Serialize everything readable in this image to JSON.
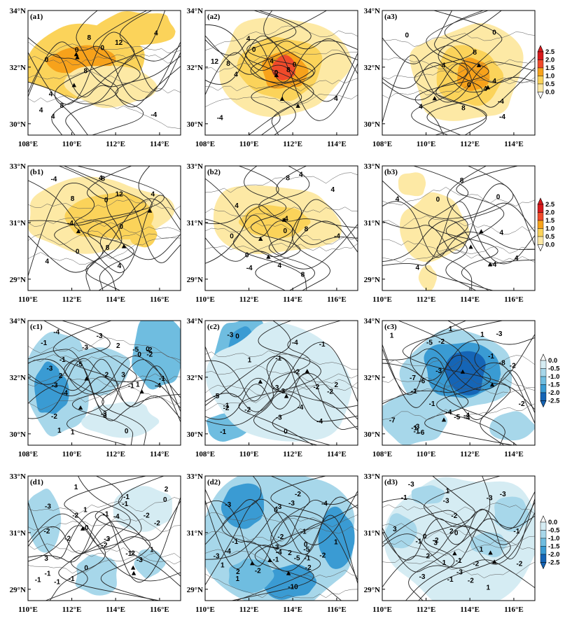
{
  "colorbars": {
    "positive": {
      "labels": [
        "2.5",
        "2.0",
        "1.5",
        "1.0",
        "0.5",
        "0.0"
      ],
      "colors": [
        "#d7191c",
        "#f04a2a",
        "#f7a21b",
        "#fbd35a",
        "#fde9a5",
        "#ffffff"
      ]
    },
    "negative": {
      "labels": [
        "0.0",
        "-0.5",
        "-1.0",
        "-1.5",
        "-2.0",
        "-2.5"
      ],
      "colors": [
        "#ffffff",
        "#d5ecf3",
        "#a7d7ea",
        "#6fbde0",
        "#3a9bd3",
        "#1565b6"
      ]
    }
  },
  "row_axes": [
    {
      "x_ticks": [
        "108°E",
        "110°E",
        "112°E",
        "114°E"
      ],
      "y_ticks": [
        "34°N",
        "32°N",
        "30°N"
      ]
    },
    {
      "x_ticks": [
        "110°E",
        "112°E",
        "114°E",
        "116°E"
      ],
      "y_ticks": [
        "33°N",
        "31°N",
        "29°N"
      ]
    },
    {
      "x_ticks": [
        "108°E",
        "110°E",
        "112°E",
        "114°E"
      ],
      "y_ticks": [
        "34°N",
        "32°N",
        "30°N"
      ]
    },
    {
      "x_ticks": [
        "110°E",
        "112°E",
        "114°E",
        "116°E"
      ],
      "y_ticks": [
        "33°N",
        "31°N",
        "29°N"
      ]
    }
  ],
  "panels": [
    {
      "id": "a1",
      "row": 0,
      "col": 0,
      "sign": "pos",
      "contour_labels": [
        "-4",
        "0",
        "4",
        "8",
        "12",
        "4",
        "8",
        "0",
        "4",
        "0",
        "4",
        "8"
      ]
    },
    {
      "id": "a2",
      "row": 0,
      "col": 1,
      "sign": "pos",
      "contour_labels": [
        "0",
        "4",
        "8",
        "12",
        "8",
        "4",
        "0",
        "4",
        "0",
        "-4",
        "4"
      ]
    },
    {
      "id": "a3",
      "row": 0,
      "col": 2,
      "sign": "pos",
      "contour_labels": [
        "4",
        "0",
        "4",
        "8",
        "0",
        "4",
        "8",
        "-4",
        "0",
        "4",
        "-4"
      ]
    },
    {
      "id": "b1",
      "row": 1,
      "col": 0,
      "sign": "pos",
      "contour_labels": [
        "-4",
        "0",
        "4",
        "8",
        "4",
        "8",
        "12",
        "8",
        "4",
        "0",
        "-4",
        "4",
        "0"
      ]
    },
    {
      "id": "b2",
      "row": 1,
      "col": 1,
      "sign": "pos",
      "contour_labels": [
        "-4",
        "4",
        "0",
        "4",
        "8",
        "8",
        "8",
        "4",
        "0",
        "-4",
        "4",
        "0",
        "-4"
      ]
    },
    {
      "id": "b3",
      "row": 1,
      "col": 2,
      "sign": "pos",
      "contour_labels": [
        "4",
        "0",
        "4",
        "8",
        "4",
        "0",
        "-4",
        "4"
      ]
    },
    {
      "id": "c1",
      "row": 2,
      "col": 0,
      "sign": "neg",
      "contour_labels": [
        "-3",
        "-4",
        "-2",
        "1",
        "2",
        "-1",
        "-2",
        "-3",
        "-4",
        "-5",
        "-3",
        "0",
        "-1",
        "1",
        "2",
        "3",
        "-1",
        "0",
        "-1",
        "3",
        "2",
        "-3",
        "-4",
        "-5",
        "-3",
        "0",
        "-2",
        "1"
      ]
    },
    {
      "id": "c2",
      "row": 2,
      "col": 1,
      "sign": "neg",
      "contour_labels": [
        "-2",
        "-1",
        "-3",
        "-4",
        "-5",
        "-1",
        "2",
        "0",
        "-4",
        "-3",
        "-2",
        "0",
        "-1",
        "-3",
        "-2",
        "-2",
        "1",
        "-2",
        "-3",
        "-4",
        "-1"
      ]
    },
    {
      "id": "c3",
      "row": 2,
      "col": 2,
      "sign": "neg",
      "contour_labels": [
        "-3",
        "-2",
        "-1",
        "-4",
        "-5",
        "-6",
        "-7",
        "-8",
        "-7",
        "-6",
        "-5",
        "-1",
        "1",
        "-1",
        "1",
        "-2",
        "-3",
        "-4",
        "-1",
        "-4",
        "-3",
        "-2",
        "-1",
        "1"
      ]
    },
    {
      "id": "d1",
      "row": 3,
      "col": 0,
      "sign": "neg",
      "contour_labels": [
        "-4",
        "-3",
        "-2",
        "3",
        "2",
        "1",
        "-3",
        "-2",
        "-1",
        "0",
        "-1",
        "-2",
        "-1",
        "1",
        "-2",
        "2",
        "0",
        "-1",
        "-1",
        "-3",
        "-2",
        "-1",
        "-1",
        "0",
        "1",
        "-1",
        "-2"
      ]
    },
    {
      "id": "d2",
      "row": 3,
      "col": 1,
      "sign": "neg",
      "contour_labels": [
        "-3",
        "-2",
        "-4",
        "-5",
        "0",
        "-2",
        "-1",
        "2",
        "1",
        "-2",
        "-3",
        "-4",
        "-1",
        "2",
        "-2",
        "-3",
        "1",
        "-1",
        "-2",
        "-3",
        "-4",
        "-5",
        "-10",
        "1",
        "0",
        "-3",
        "-1"
      ]
    },
    {
      "id": "d3",
      "row": 3,
      "col": 2,
      "sign": "neg",
      "contour_labels": [
        "1",
        "0",
        "-3",
        "-2",
        "-1",
        "-2",
        "-3",
        "-3",
        "1",
        "2",
        "-1",
        "-2",
        "3",
        "2",
        "1",
        "-1",
        "-2",
        "-3",
        "1",
        "-1",
        "-2",
        "0",
        "-3",
        "-3",
        "-1",
        "3"
      ]
    }
  ]
}
